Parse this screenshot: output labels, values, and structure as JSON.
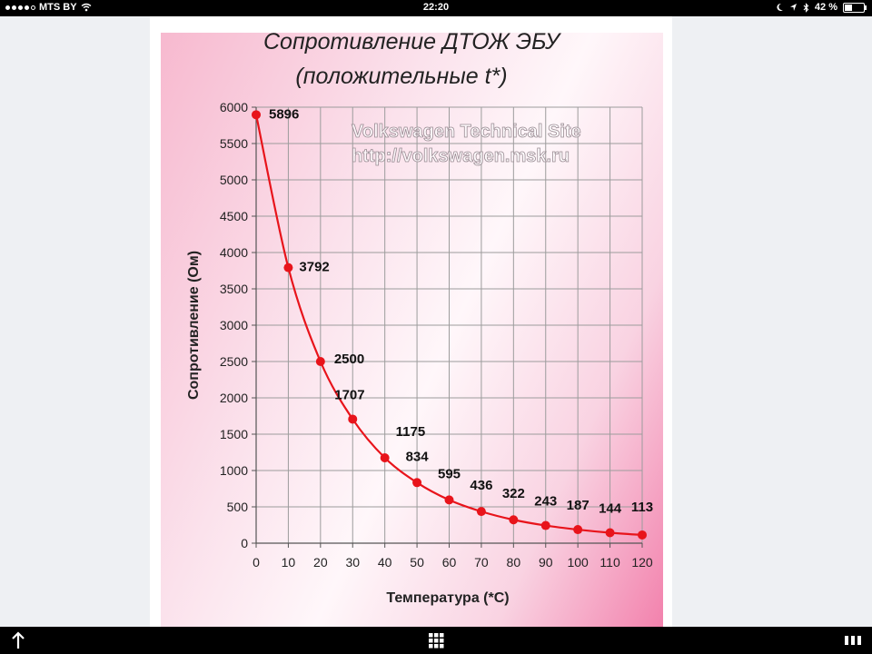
{
  "status_bar": {
    "carrier": "MTS BY",
    "time": "22:20",
    "battery": "42 %",
    "battery_level": 0.42
  },
  "chart_data": {
    "type": "line",
    "title": "Сопротивление ДТОЖ ЭБУ",
    "subtitle": "(положительные t*)",
    "xlabel": "Температура (*С)",
    "ylabel": "Сопротивление (Ом)",
    "watermark_line1": "Volkswagen Technical Site",
    "watermark_line2": "http://volkswagen.msk.ru",
    "x": [
      0,
      10,
      20,
      30,
      40,
      50,
      60,
      70,
      80,
      90,
      100,
      110,
      120
    ],
    "values": [
      5896,
      3792,
      2500,
      1707,
      1175,
      834,
      595,
      436,
      322,
      243,
      187,
      144,
      113
    ],
    "data_labels": [
      "5896",
      "3792",
      "2500",
      "1707",
      "1175",
      "834",
      "595",
      "436",
      "322",
      "243",
      "187",
      "144",
      "113"
    ],
    "xticks": [
      "0",
      "10",
      "20",
      "30",
      "40",
      "50",
      "60",
      "70",
      "80",
      "90",
      "100",
      "110",
      "120"
    ],
    "yticks": [
      "0",
      "500",
      "1000",
      "1500",
      "2000",
      "2500",
      "3000",
      "3500",
      "4000",
      "4500",
      "5000",
      "5500",
      "6000"
    ],
    "xlim": [
      0,
      120
    ],
    "ylim": [
      0,
      6000
    ],
    "grid": true,
    "line_color": "#e8141b",
    "background_colors": [
      "#f7b9cf",
      "#fff7fa",
      "#f27fab"
    ]
  },
  "toolbar": {
    "share_icon": "up-arrow-icon",
    "grid_icon": "grid-icon",
    "pages_icon": "pages-icon"
  }
}
